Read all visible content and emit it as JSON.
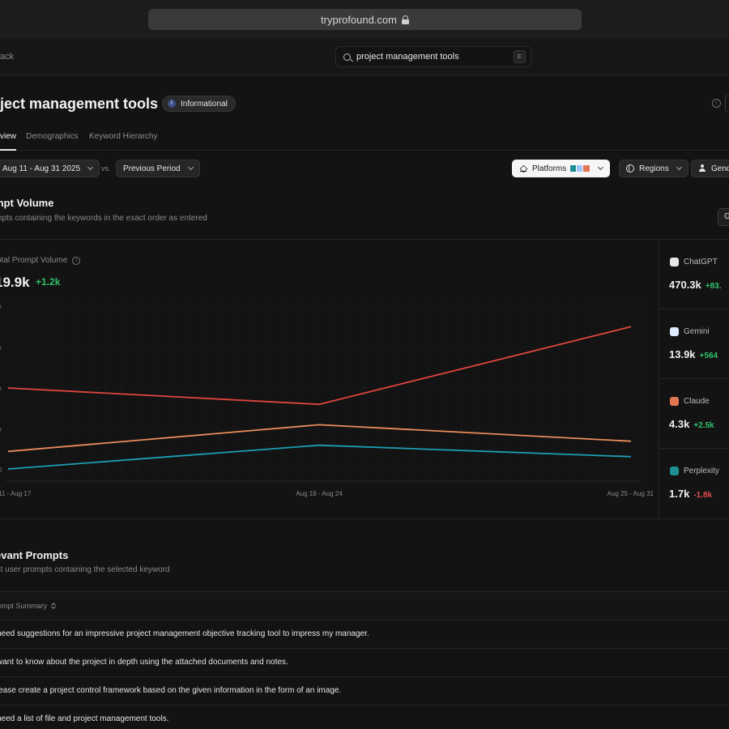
{
  "browser": {
    "url": "tryprofound.com"
  },
  "header": {
    "back_label": "ack",
    "search_value": "project management tools",
    "search_shortcut": "F"
  },
  "page": {
    "title": "oject management tools",
    "intent_badge": "Informational",
    "intent_badge_icon": "i"
  },
  "tabs": [
    {
      "label": "view",
      "active": true
    },
    {
      "label": "Demographics",
      "active": false
    },
    {
      "label": "Keyword Hierarchy",
      "active": false
    }
  ],
  "filters": {
    "date_range": "Aug 11 - Aug 31 2025",
    "vs_label": "vs.",
    "compare": "Previous Period",
    "platforms": "Platforms",
    "regions": "Regions",
    "gender": "Gend"
  },
  "prompt_volume": {
    "title": "mpt Volume",
    "subtitle": "mpts containing the keywords in the exact order as entered",
    "side_button": "G",
    "metric_label": "otal Prompt Volume",
    "metric_value": "19.9k",
    "metric_delta": "+1.2k"
  },
  "chart_data": {
    "type": "line",
    "categories": [
      "11 - Aug 17",
      "Aug 18 - Aug 24",
      "Aug 25 - Aug 31"
    ],
    "y_tick_labels": [
      "k",
      "k",
      "k",
      "k",
      "0"
    ],
    "ylim": [
      0,
      4
    ],
    "grid": true,
    "series": [
      {
        "color": "#e0453f",
        "values": [
          2.0,
          1.6,
          3.5
        ]
      },
      {
        "color": "#e98c5c",
        "values": [
          0.45,
          1.1,
          0.7
        ]
      },
      {
        "color": "#1c9fb3",
        "values": [
          0.02,
          0.6,
          0.32
        ]
      }
    ]
  },
  "platforms": [
    {
      "name": "ChatGPT",
      "value": "470.3k",
      "delta": "+83.",
      "delta_color": "#2fc36b",
      "icon": "chatgpt-icon",
      "icon_color": "#e8e8e8"
    },
    {
      "name": "Gemini",
      "value": "13.9k",
      "delta": "+564",
      "delta_color": "#2fc36b",
      "icon": "gemini-icon",
      "icon_color": "#dfe9ff"
    },
    {
      "name": "Claude",
      "value": "4.3k",
      "delta": "+2.5k",
      "delta_color": "#2fc36b",
      "icon": "claude-icon",
      "icon_color": "#e07553"
    },
    {
      "name": "Perplexity",
      "value": "1.7k",
      "delta": "-1.8k",
      "delta_color": "#e24c4c",
      "icon": "perplexity-icon",
      "icon_color": "#1f8f93"
    }
  ],
  "relevant_prompts": {
    "title": "evant Prompts",
    "subtitle": "nt user prompts containing the selected keyword",
    "column_header": "rompt Summary",
    "rows": [
      "need suggestions for an impressive project management objective tracking tool to impress my manager.",
      "want to know about the project in depth using the attached documents and notes.",
      "lease create a project control framework based on the given information in the form of an image.",
      "need a list of file and project management tools."
    ]
  }
}
